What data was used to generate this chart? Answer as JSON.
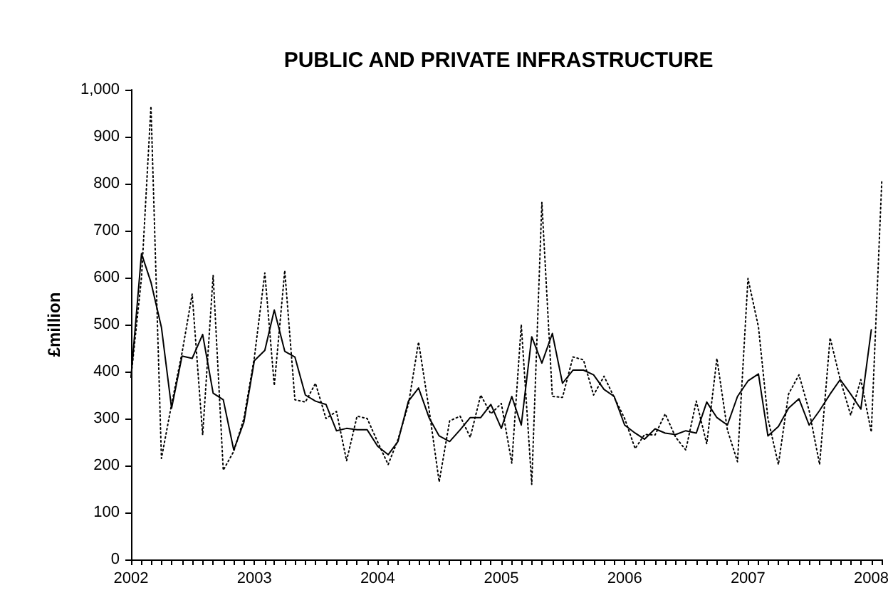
{
  "chart_data": {
    "type": "line",
    "title": "PUBLIC AND PRIVATE INFRASTRUCTURE",
    "ylabel": "£million",
    "x": [
      "2002-01",
      "2002-02",
      "2002-03",
      "2002-04",
      "2002-05",
      "2002-06",
      "2002-07",
      "2002-08",
      "2002-09",
      "2002-10",
      "2002-11",
      "2002-12",
      "2003-01",
      "2003-02",
      "2003-03",
      "2003-04",
      "2003-05",
      "2003-06",
      "2003-07",
      "2003-08",
      "2003-09",
      "2003-10",
      "2003-11",
      "2003-12",
      "2004-01",
      "2004-02",
      "2004-03",
      "2004-04",
      "2004-05",
      "2004-06",
      "2004-07",
      "2004-08",
      "2004-09",
      "2004-10",
      "2004-11",
      "2004-12",
      "2005-01",
      "2005-02",
      "2005-03",
      "2005-04",
      "2005-05",
      "2005-06",
      "2005-07",
      "2005-08",
      "2005-09",
      "2005-10",
      "2005-11",
      "2005-12",
      "2006-01",
      "2006-02",
      "2006-03",
      "2006-04",
      "2006-05",
      "2006-06",
      "2006-07",
      "2006-08",
      "2006-09",
      "2006-10",
      "2006-11",
      "2006-12",
      "2007-01",
      "2007-02",
      "2007-03",
      "2007-04",
      "2007-05",
      "2007-06",
      "2007-07",
      "2007-08",
      "2007-09",
      "2007-10",
      "2007-11",
      "2007-12",
      "2008-01"
    ],
    "series": [
      {
        "color": "#000000",
        "line_style": "solid",
        "values": [
          388,
          651,
          590,
          494,
          322,
          433,
          428,
          479,
          354,
          340,
          233,
          292,
          423,
          445,
          531,
          443,
          431,
          350,
          337,
          330,
          274,
          279,
          276,
          276,
          241,
          223,
          251,
          337,
          365,
          302,
          263,
          251,
          276,
          302,
          302,
          330,
          279,
          347,
          286,
          474,
          418,
          481,
          375,
          403,
          403,
          393,
          362,
          347,
          286,
          269,
          256,
          278,
          269,
          266,
          274,
          269,
          335,
          302,
          286,
          347,
          380,
          395,
          263,
          283,
          322,
          342,
          286,
          317,
          352,
          383,
          352,
          320,
          489
        ]
      },
      {
        "color": "#000000",
        "line_style": "dotted",
        "x": [
          "2002-01",
          "2002-02",
          "2002-03",
          "2002-04",
          "2002-05",
          "2002-06",
          "2002-07",
          "2002-08",
          "2002-09",
          "2002-10",
          "2002-11",
          "2002-12",
          "2003-01",
          "2003-02",
          "2003-03",
          "2003-04",
          "2003-05",
          "2003-06",
          "2003-07",
          "2003-08",
          "2003-09",
          "2003-10",
          "2003-11",
          "2003-12",
          "2004-01",
          "2004-02",
          "2004-03",
          "2004-04",
          "2004-05",
          "2004-06",
          "2004-07",
          "2004-08",
          "2004-09",
          "2004-10",
          "2004-11",
          "2004-12",
          "2005-01",
          "2005-02",
          "2005-03",
          "2005-04",
          "2005-05",
          "2005-06",
          "2005-07",
          "2005-08",
          "2005-09",
          "2005-10",
          "2005-11",
          "2005-12",
          "2006-01",
          "2006-02",
          "2006-03",
          "2006-04",
          "2006-05",
          "2006-06",
          "2006-07",
          "2006-08",
          "2006-09",
          "2006-10",
          "2006-11",
          "2006-12",
          "2007-01",
          "2007-02",
          "2007-03",
          "2007-04",
          "2007-05",
          "2007-06",
          "2007-07",
          "2007-08",
          "2007-09",
          "2007-10",
          "2007-11",
          "2007-12",
          "2008-01",
          "2008-02"
        ],
        "values": [
          388,
          600,
          965,
          215,
          330,
          440,
          565,
          265,
          605,
          190,
          230,
          300,
          430,
          610,
          370,
          615,
          340,
          335,
          375,
          300,
          315,
          210,
          305,
          300,
          250,
          202,
          255,
          330,
          463,
          320,
          165,
          295,
          305,
          260,
          350,
          310,
          332,
          205,
          500,
          160,
          760,
          347,
          345,
          431,
          425,
          350,
          390,
          345,
          300,
          236,
          266,
          265,
          310,
          260,
          233,
          337,
          246,
          428,
          276,
          208,
          598,
          495,
          300,
          202,
          352,
          393,
          317,
          202,
          472,
          383,
          307,
          383,
          271,
          805
        ]
      }
    ],
    "xlim": [
      "2002-01",
      "2008-02"
    ],
    "xticks": [
      "2002",
      "2003",
      "2004",
      "2005",
      "2006",
      "2007",
      "2008"
    ],
    "ylim": [
      0,
      1000
    ],
    "yticks": [
      0,
      100,
      200,
      300,
      400,
      500,
      600,
      700,
      800,
      900,
      {
        "value": 1000,
        "label": "1,000"
      }
    ],
    "grid": false,
    "marker": "none"
  }
}
